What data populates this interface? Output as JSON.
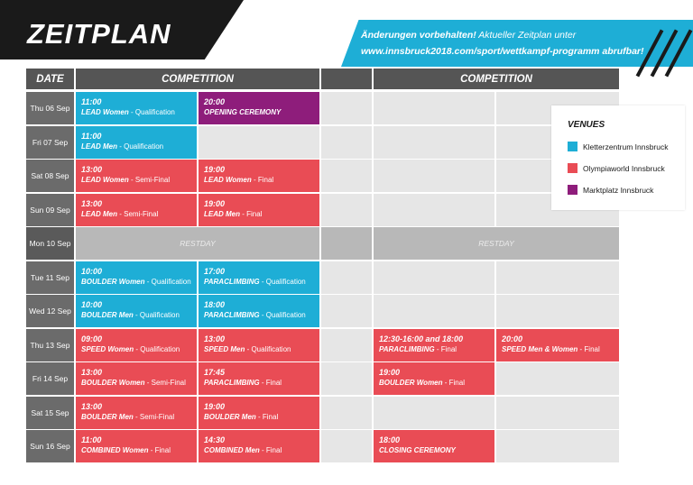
{
  "title": "ZEITPLAN",
  "notice": {
    "bold": "Änderungen vorbehalten!",
    "rest": " Aktueller Zeitplan unter",
    "url_line": "www.innsbruck2018.com/sport/wettkampf-programm abrufbar!"
  },
  "headers": {
    "date": "DATE",
    "competition_left": "COMPETITION",
    "competition_right": "COMPETITION"
  },
  "colors": {
    "blue": "#1eaed6",
    "red": "#e94c55",
    "purple": "#8e1d7b"
  },
  "venues": {
    "title": "VENUES",
    "items": [
      {
        "label": "Kletterzentrum Innsbruck",
        "color": "#1eaed6"
      },
      {
        "label": "Olympiaworld Innsbruck",
        "color": "#e94c55"
      },
      {
        "label": "Marktplatz Innsbruck",
        "color": "#8e1d7b"
      }
    ]
  },
  "restday_label": "RESTDAY",
  "rows": [
    {
      "date": "Thu 06 Sep",
      "events": [
        {
          "col": 0,
          "time": "11:00",
          "bold": "LEAD Women",
          "rest": " - Qualification",
          "venue": "blue"
        },
        {
          "col": 1,
          "time": "20:00",
          "bold": "OPENING CEREMONY",
          "rest": "",
          "venue": "purple"
        }
      ]
    },
    {
      "date": "Fri 07 Sep",
      "events": [
        {
          "col": 0,
          "time": "11:00",
          "bold": "LEAD Men",
          "rest": " - Qualification",
          "venue": "blue"
        }
      ]
    },
    {
      "date": "Sat 08 Sep",
      "events": [
        {
          "col": 0,
          "time": "13:00",
          "bold": "LEAD Women",
          "rest": " - Semi-Final",
          "venue": "red"
        },
        {
          "col": 1,
          "time": "19:00",
          "bold": "LEAD Women",
          "rest": " - Final",
          "venue": "red"
        }
      ]
    },
    {
      "date": "Sun 09 Sep",
      "events": [
        {
          "col": 0,
          "time": "13:00",
          "bold": "LEAD Men",
          "rest": " - Semi-Final",
          "venue": "red"
        },
        {
          "col": 1,
          "time": "19:00",
          "bold": "LEAD Men",
          "rest": " - Final",
          "venue": "red"
        }
      ]
    },
    {
      "date": "Mon 10 Sep",
      "restday": true,
      "events": []
    },
    {
      "date": "Tue 11 Sep",
      "events": [
        {
          "col": 0,
          "time": "10:00",
          "bold": "BOULDER Women",
          "rest": " - Qualification",
          "venue": "blue"
        },
        {
          "col": 1,
          "time": "17:00",
          "bold": "PARACLIMBING",
          "rest": " - Qualification",
          "venue": "blue"
        }
      ]
    },
    {
      "date": "Wed 12 Sep",
      "events": [
        {
          "col": 0,
          "time": "10:00",
          "bold": "BOULDER Men",
          "rest": " - Qualification",
          "venue": "blue"
        },
        {
          "col": 1,
          "time": "18:00",
          "bold": "PARACLIMBING",
          "rest": " - Qualification",
          "venue": "blue"
        }
      ]
    },
    {
      "date": "Thu 13 Sep",
      "events": [
        {
          "col": 0,
          "time": "09:00",
          "bold": "SPEED Women",
          "rest": " - Qualification",
          "venue": "red"
        },
        {
          "col": 1,
          "time": "13:00",
          "bold": "SPEED Men",
          "rest": " - Qualification",
          "venue": "red"
        },
        {
          "col": 3,
          "time": "12:30-16:00 and 18:00",
          "bold": "PARACLIMBING",
          "rest": " - Final",
          "venue": "red"
        },
        {
          "col": 4,
          "time": "20:00",
          "bold": "SPEED Men & Women",
          "rest": " - Final",
          "venue": "red"
        }
      ]
    },
    {
      "date": "Fri 14 Sep",
      "events": [
        {
          "col": 0,
          "time": "13:00",
          "bold": "BOULDER Women",
          "rest": " - Semi-Final",
          "venue": "red"
        },
        {
          "col": 1,
          "time": "17:45",
          "bold": "PARACLIMBING",
          "rest": " - Final",
          "venue": "red"
        },
        {
          "col": 3,
          "time": "19:00",
          "bold": "BOULDER Women",
          "rest": " - Final",
          "venue": "red"
        }
      ]
    },
    {
      "date": "Sat 15 Sep",
      "events": [
        {
          "col": 0,
          "time": "13:00",
          "bold": "BOULDER Men",
          "rest": " - Semi-Final",
          "venue": "red"
        },
        {
          "col": 1,
          "time": "19:00",
          "bold": "BOULDER Men",
          "rest": " - Final",
          "venue": "red"
        }
      ]
    },
    {
      "date": "Sun 16 Sep",
      "events": [
        {
          "col": 0,
          "time": "11:00",
          "bold": "COMBINED Women",
          "rest": " - Final",
          "venue": "red"
        },
        {
          "col": 1,
          "time": "14:30",
          "bold": "COMBINED Men",
          "rest": " - Final",
          "venue": "red"
        },
        {
          "col": 3,
          "time": "18:00",
          "bold": "CLOSING CEREMONY",
          "rest": "",
          "venue": "red"
        }
      ]
    }
  ]
}
